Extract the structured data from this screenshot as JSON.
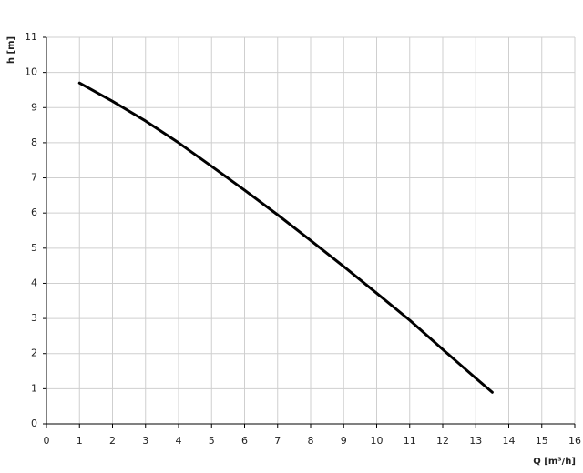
{
  "chart_data": {
    "type": "line",
    "x_label": "Q [m³/h]",
    "y_label": "h [m]",
    "x": [
      1,
      2,
      3,
      4,
      5,
      6,
      7,
      8,
      9,
      10,
      11,
      12,
      13,
      13.5
    ],
    "series": [
      {
        "color": "#000000",
        "values": [
          9.7,
          9.18,
          8.62,
          8.0,
          7.33,
          6.65,
          5.95,
          5.22,
          4.48,
          3.72,
          2.95,
          2.12,
          1.3,
          0.9
        ]
      }
    ],
    "xlim": [
      0,
      16
    ],
    "xticks": [
      0,
      1,
      2,
      3,
      4,
      5,
      6,
      7,
      8,
      9,
      10,
      11,
      12,
      13,
      14,
      15,
      16
    ],
    "ylim": [
      0,
      11
    ],
    "yticks": [
      0,
      1,
      2,
      3,
      4,
      5,
      6,
      7,
      8,
      9,
      10,
      11
    ],
    "grid": true
  }
}
